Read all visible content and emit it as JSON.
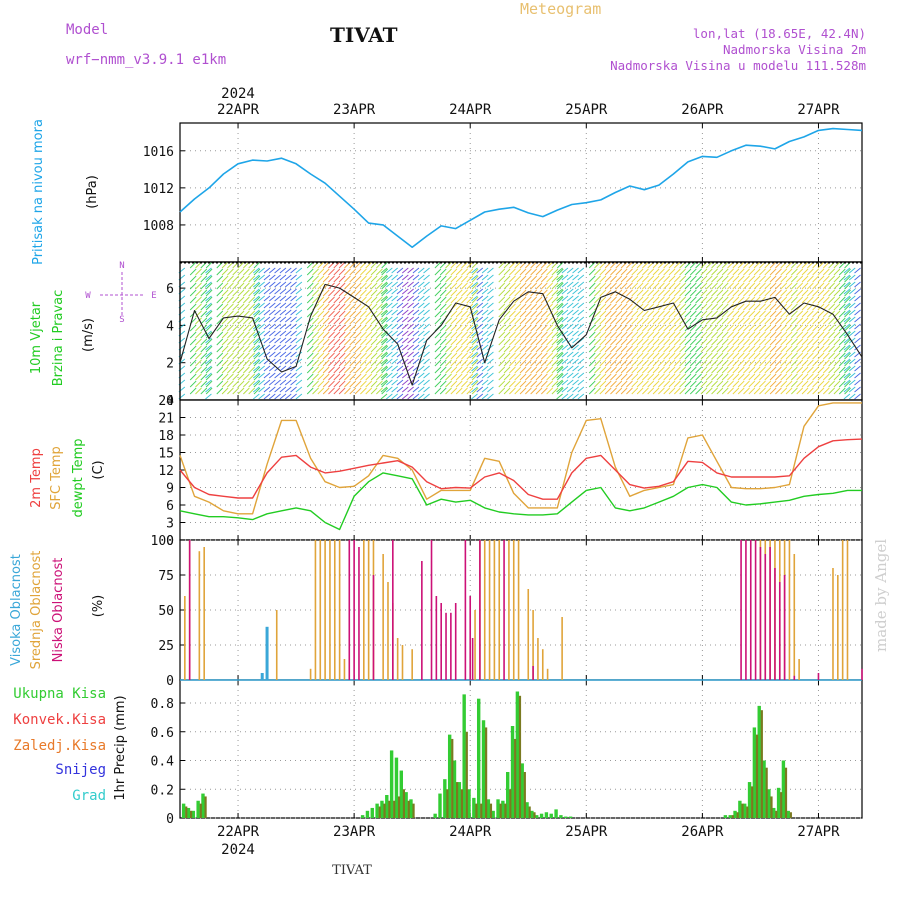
{
  "header": {
    "model_label": "Model",
    "model_name": "wrf−nmm_v3.9.1 e1km",
    "station": "TIVAT",
    "meteogram_label": "Meteogram",
    "lonlat": "lon,lat (18.65E, 42.4N)",
    "elevation": "Nadmorska Visina 2m",
    "model_elevation": "Nadmorska Visina u modelu 111.528m"
  },
  "footer": {
    "station": "TIVAT",
    "watermark": "made by Angel"
  },
  "time_axis": {
    "year": "2024",
    "days": [
      "22APR",
      "23APR",
      "24APR",
      "25APR",
      "26APR",
      "27APR"
    ],
    "start_hour": -12,
    "end_hour": 129
  },
  "colors": {
    "pressure": "#1ea5e8",
    "temp_2m": "#ee4040",
    "temp_sfc": "#e0a43a",
    "temp_dew": "#22cc22",
    "cloud_high": "#3aa7d8",
    "cloud_mid": "#e0a43a",
    "cloud_low": "#cc1177",
    "precip_total": "#33cc33",
    "precip_conv": "#ee4040",
    "precip_frozen": "#e87a2a",
    "snow": "#3333dd",
    "hail": "#33cccc",
    "title_purple": "#b050d0",
    "meteogram_label": "#e8c070"
  },
  "chart_data": [
    {
      "type": "line",
      "panel": "pressure",
      "ylabels": [
        "Pritisak na nivou mora",
        "(hPa)"
      ],
      "yticks": [
        1008,
        1012,
        1016
      ],
      "ylim": [
        1004,
        1019
      ],
      "series": [
        {
          "x": [
            -12,
            -9,
            -6,
            -3,
            0,
            3,
            6,
            9,
            12,
            15,
            18,
            21,
            24,
            27,
            30,
            33,
            36,
            39,
            42,
            45,
            48,
            51,
            54,
            57,
            60,
            63,
            66,
            69,
            72,
            75,
            78,
            81,
            84,
            87,
            90,
            93,
            96,
            99,
            102,
            105,
            108,
            111,
            114,
            117,
            120,
            123,
            126,
            129
          ],
          "values": [
            1009.4,
            1010.8,
            1012.0,
            1013.5,
            1014.6,
            1015.0,
            1014.9,
            1015.2,
            1014.6,
            1013.5,
            1012.5,
            1011.1,
            1009.7,
            1008.2,
            1008.0,
            1006.8,
            1005.6,
            1006.8,
            1007.9,
            1007.6,
            1008.5,
            1009.4,
            1009.7,
            1009.9,
            1009.3,
            1008.9,
            1009.6,
            1010.2,
            1010.4,
            1010.7,
            1011.5,
            1012.2,
            1011.8,
            1012.3,
            1013.5,
            1014.8,
            1015.4,
            1015.3,
            1016.0,
            1016.6,
            1016.5,
            1016.2,
            1017.0,
            1017.5,
            1018.2,
            1018.4,
            1018.3,
            1018.2
          ]
        }
      ]
    },
    {
      "type": "line",
      "panel": "wind",
      "ylabels": [
        "10m Vjetar",
        "Brzina i Pravac",
        "(m/s)"
      ],
      "compass": [
        "N",
        "W",
        "E",
        "S"
      ],
      "yticks": [
        0,
        2,
        4,
        6
      ],
      "ylim": [
        0,
        7.4
      ],
      "series": [
        {
          "x": [
            -12,
            -9,
            -6,
            -3,
            0,
            3,
            6,
            9,
            12,
            15,
            18,
            21,
            24,
            27,
            30,
            33,
            36,
            39,
            42,
            45,
            48,
            51,
            54,
            57,
            60,
            63,
            66,
            69,
            72,
            75,
            78,
            81,
            84,
            87,
            90,
            93,
            96,
            99,
            102,
            105,
            108,
            111,
            114,
            117,
            120,
            123,
            126,
            129
          ],
          "values": [
            2.0,
            4.8,
            3.3,
            4.4,
            4.5,
            4.4,
            2.2,
            1.5,
            1.8,
            4.5,
            6.2,
            6.0,
            5.5,
            5.0,
            3.8,
            3.0,
            0.8,
            3.2,
            4.0,
            5.2,
            5.0,
            2.0,
            4.3,
            5.3,
            5.8,
            5.7,
            4.0,
            2.8,
            3.5,
            5.5,
            5.8,
            5.4,
            4.8,
            5.0,
            5.2,
            3.8,
            4.3,
            4.4,
            5.0,
            5.3,
            5.3,
            5.5,
            4.6,
            5.2,
            5.0,
            4.6,
            3.5,
            2.3
          ]
        }
      ]
    },
    {
      "type": "line",
      "panel": "temperature",
      "ylabels": [
        "2m Temp",
        "SFC Temp",
        "dewpt Temp",
        "(C)"
      ],
      "yticks": [
        0,
        3,
        6,
        9,
        12,
        15,
        18,
        21,
        24
      ],
      "ylim": [
        0,
        24
      ],
      "series": [
        {
          "name": "2m Temp",
          "x": [
            -12,
            -9,
            -6,
            -3,
            0,
            3,
            6,
            9,
            12,
            15,
            18,
            21,
            24,
            27,
            30,
            33,
            36,
            39,
            42,
            45,
            48,
            51,
            54,
            57,
            60,
            63,
            66,
            69,
            72,
            75,
            78,
            81,
            84,
            87,
            90,
            93,
            96,
            99,
            102,
            105,
            108,
            111,
            114,
            117,
            120,
            123,
            126,
            129
          ],
          "values": [
            12.0,
            9.0,
            7.8,
            7.5,
            7.2,
            7.2,
            11.5,
            14.2,
            14.5,
            12.5,
            11.5,
            11.8,
            12.3,
            12.8,
            13.2,
            13.6,
            12.5,
            10.0,
            8.8,
            9.0,
            8.9,
            10.8,
            11.5,
            10.2,
            7.8,
            7.0,
            7.0,
            11.5,
            14.0,
            14.5,
            12.0,
            9.5,
            8.9,
            9.2,
            10.0,
            13.5,
            13.3,
            11.5,
            10.8,
            10.8,
            10.8,
            10.8,
            11.0,
            14.0,
            16.0,
            17.0,
            17.2,
            17.3
          ]
        },
        {
          "name": "SFC Temp",
          "x": [
            -12,
            -9,
            -6,
            -3,
            0,
            3,
            6,
            9,
            12,
            15,
            18,
            21,
            24,
            27,
            30,
            33,
            36,
            39,
            42,
            45,
            48,
            51,
            54,
            57,
            60,
            63,
            66,
            69,
            72,
            75,
            78,
            81,
            84,
            87,
            90,
            93,
            96,
            99,
            102,
            105,
            108,
            111,
            114,
            117,
            120,
            123,
            126,
            129
          ],
          "values": [
            14.5,
            7.5,
            6.5,
            5.0,
            4.5,
            4.5,
            13.0,
            20.5,
            20.5,
            14.0,
            10.0,
            9.0,
            9.2,
            11.0,
            14.5,
            14.0,
            12.0,
            7.0,
            8.5,
            8.5,
            8.5,
            14.0,
            13.5,
            8.0,
            5.5,
            5.5,
            5.5,
            15.0,
            20.5,
            20.8,
            12.5,
            7.5,
            8.5,
            9.0,
            9.5,
            17.5,
            18.0,
            13.5,
            9.0,
            8.8,
            8.8,
            9.0,
            9.5,
            19.5,
            23.0,
            23.5,
            23.5,
            23.5
          ]
        },
        {
          "name": "dewpt Temp",
          "x": [
            -12,
            -9,
            -6,
            -3,
            0,
            3,
            6,
            9,
            12,
            15,
            18,
            21,
            24,
            27,
            30,
            33,
            36,
            39,
            42,
            45,
            48,
            51,
            54,
            57,
            60,
            63,
            66,
            69,
            72,
            75,
            78,
            81,
            84,
            87,
            90,
            93,
            96,
            99,
            102,
            105,
            108,
            111,
            114,
            117,
            120,
            123,
            126,
            129
          ],
          "values": [
            5.0,
            4.5,
            4.0,
            4.0,
            3.8,
            3.5,
            4.5,
            5.0,
            5.5,
            5.0,
            3.0,
            1.8,
            7.5,
            10.0,
            11.5,
            11.0,
            10.5,
            6.0,
            7.0,
            6.5,
            6.8,
            5.5,
            4.8,
            4.5,
            4.3,
            4.3,
            4.5,
            6.5,
            8.5,
            9.0,
            5.5,
            5.0,
            5.5,
            6.5,
            7.5,
            9.0,
            9.5,
            9.0,
            6.5,
            6.0,
            6.2,
            6.5,
            6.8,
            7.5,
            7.8,
            8.0,
            8.5,
            8.5
          ]
        }
      ]
    },
    {
      "type": "bar",
      "panel": "cloud",
      "ylabels": [
        "Visoka Oblacnost",
        "Srednja Oblacnost",
        "Niska Oblacnost",
        "(%)"
      ],
      "yticks": [
        0,
        25,
        50,
        75,
        100
      ],
      "ylim": [
        0,
        100
      ],
      "series": [
        {
          "name": "Srednja Oblacnost",
          "x": [
            -11,
            -10,
            -8,
            -7,
            6,
            8,
            15,
            16,
            17,
            18,
            19,
            20,
            21,
            22,
            26,
            27,
            28,
            30,
            31,
            32,
            33,
            34,
            36,
            49,
            50,
            51,
            52,
            53,
            54,
            56,
            57,
            58,
            60,
            61,
            62,
            63,
            64,
            67,
            108,
            109,
            110,
            111,
            112,
            113,
            114,
            115,
            116,
            123,
            124,
            125,
            126
          ],
          "values": [
            60,
            100,
            92,
            95,
            5,
            50,
            8,
            100,
            100,
            100,
            100,
            100,
            100,
            15,
            100,
            100,
            100,
            90,
            70,
            55,
            30,
            25,
            22,
            50,
            100,
            100,
            100,
            100,
            100,
            100,
            100,
            100,
            65,
            50,
            30,
            22,
            8,
            45,
            100,
            100,
            100,
            100,
            100,
            100,
            100,
            90,
            15,
            80,
            75,
            100,
            100
          ]
        },
        {
          "name": "Niska Oblacnost",
          "x": [
            -10,
            5,
            23,
            24,
            25,
            28,
            32,
            38,
            40,
            41,
            42,
            43,
            44,
            45,
            47,
            48,
            48.5,
            50,
            55,
            61,
            104,
            105,
            106,
            107,
            108,
            109,
            110,
            111,
            112,
            113,
            115,
            120,
            129
          ],
          "values": [
            100,
            2,
            100,
            100,
            95,
            75,
            100,
            85,
            100,
            60,
            55,
            48,
            48,
            55,
            100,
            60,
            30,
            100,
            100,
            10,
            100,
            100,
            100,
            100,
            95,
            90,
            95,
            80,
            70,
            75,
            3,
            5,
            8
          ]
        },
        {
          "name": "Visoka Oblacnost",
          "x": [
            5,
            6
          ],
          "values": [
            5,
            38
          ]
        }
      ]
    },
    {
      "type": "bar",
      "panel": "precip",
      "ylabels": [
        "1hr Precip (mm)"
      ],
      "legend": [
        "Ukupna Kisa",
        "Konvek.Kisa",
        "Zaledj.Kisa",
        "Snijeg",
        "Grad"
      ],
      "yticks": [
        0,
        0.2,
        0.4,
        0.6,
        0.8
      ],
      "ylim": [
        0,
        0.96
      ],
      "series": [
        {
          "name": "Ukupna Kisa",
          "x": [
            -11,
            -10,
            -9,
            -8,
            -7,
            26,
            27,
            28,
            29,
            30,
            31,
            32,
            33,
            34,
            35,
            36,
            41,
            42,
            43,
            44,
            45,
            46,
            47,
            48,
            49,
            50,
            51,
            52,
            53,
            54,
            55,
            56,
            57,
            58,
            59,
            60,
            61,
            62,
            63,
            64,
            65,
            66,
            67,
            68,
            69,
            101,
            102,
            103,
            104,
            105,
            106,
            107,
            108,
            109,
            110,
            111,
            112,
            113,
            114
          ],
          "values": [
            0.1,
            0.07,
            0.05,
            0.12,
            0.17,
            0.02,
            0.05,
            0.07,
            0.1,
            0.12,
            0.16,
            0.47,
            0.42,
            0.33,
            0.18,
            0.13,
            0.03,
            0.17,
            0.27,
            0.58,
            0.4,
            0.25,
            0.86,
            0.2,
            0.14,
            0.83,
            0.68,
            0.13,
            0.05,
            0.13,
            0.12,
            0.32,
            0.64,
            0.88,
            0.38,
            0.11,
            0.05,
            0.02,
            0.03,
            0.04,
            0.03,
            0.06,
            0.02,
            0.01,
            0.01,
            0.02,
            0.02,
            0.05,
            0.12,
            0.1,
            0.25,
            0.63,
            0.78,
            0.4,
            0.2,
            0.07,
            0.21,
            0.4,
            0.05
          ]
        },
        {
          "name": "Konvek.Kisa",
          "x": [
            -11,
            -10,
            -8,
            -7,
            29,
            30,
            31,
            32,
            33,
            34,
            35,
            36,
            43,
            44,
            45,
            46,
            47,
            49,
            50,
            51,
            52,
            54,
            55,
            56,
            57,
            58,
            59,
            60,
            61,
            102,
            103,
            104,
            105,
            106,
            107,
            108,
            109,
            110,
            111,
            112,
            113,
            114
          ],
          "values": [
            0.08,
            0.05,
            0.1,
            0.15,
            0.08,
            0.1,
            0.12,
            0.12,
            0.15,
            0.2,
            0.12,
            0.1,
            0.2,
            0.55,
            0.25,
            0.2,
            0.6,
            0.1,
            0.1,
            0.63,
            0.1,
            0.1,
            0.1,
            0.2,
            0.55,
            0.85,
            0.32,
            0.08,
            0.04,
            0.02,
            0.04,
            0.1,
            0.08,
            0.22,
            0.58,
            0.75,
            0.35,
            0.15,
            0.05,
            0.18,
            0.35,
            0.04
          ]
        }
      ]
    }
  ]
}
